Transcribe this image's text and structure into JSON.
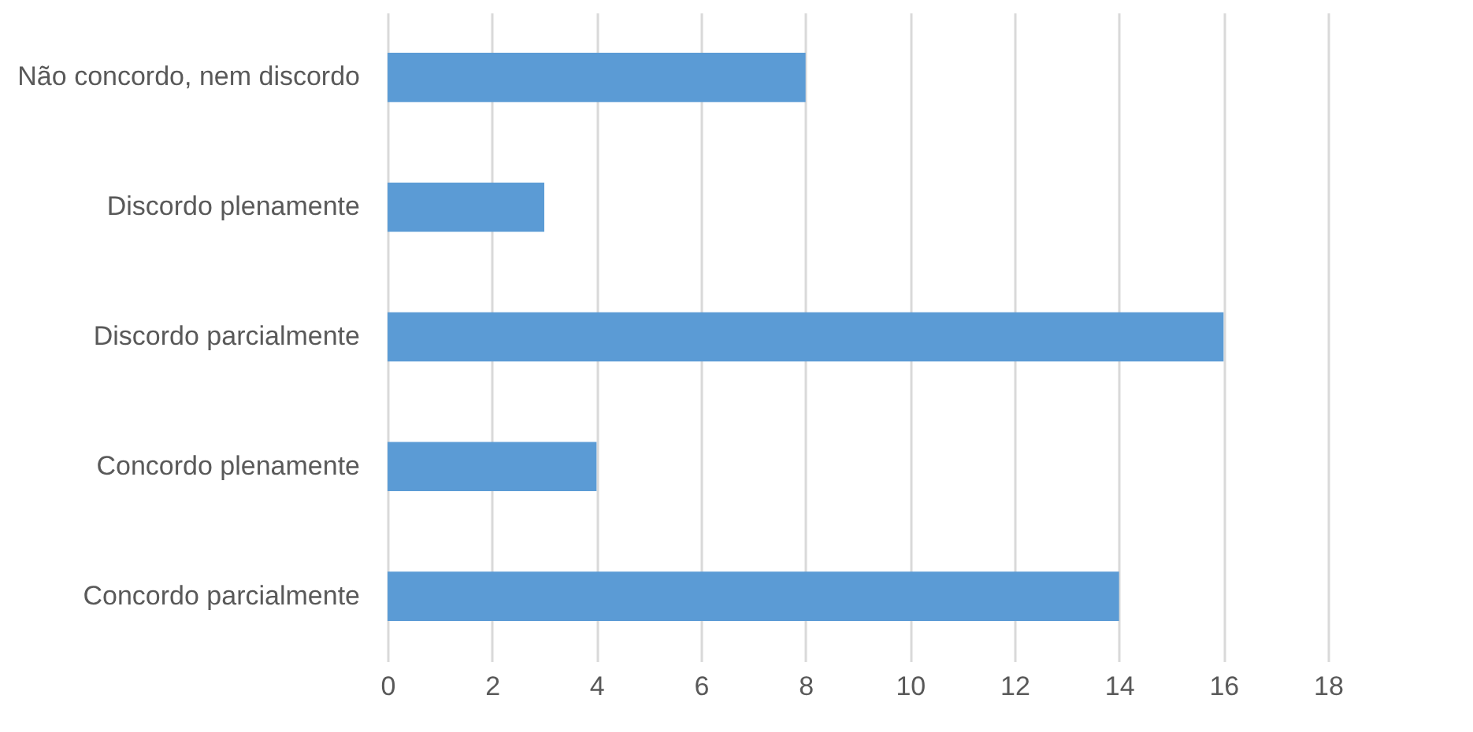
{
  "chart_data": {
    "type": "bar",
    "orientation": "horizontal",
    "categories": [
      "Não concordo, nem discordo",
      "Discordo plenamente",
      "Discordo parcialmente",
      "Concordo plenamente",
      "Concordo parcialmente"
    ],
    "values": [
      8,
      3,
      16,
      4,
      14
    ],
    "color": "#5b9bd5",
    "xlim": [
      0,
      18
    ],
    "xticks": [
      0,
      2,
      4,
      6,
      8,
      10,
      12,
      14,
      16,
      18
    ],
    "grid": "x"
  }
}
